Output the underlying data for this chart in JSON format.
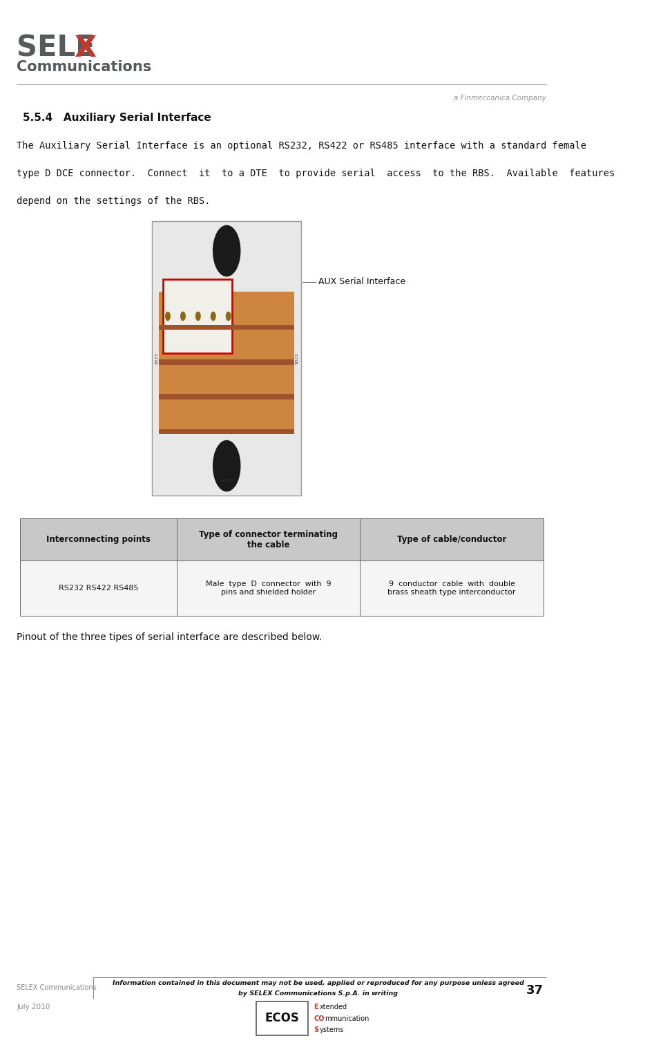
{
  "page_width": 9.6,
  "page_height": 15.25,
  "bg_color": "#ffffff",
  "logo_selex_gray": "SELE",
  "logo_selex_red": "X",
  "logo_comm_text": "Communications",
  "finmeccanica_text": "a Finmeccanica Company",
  "section_title": "5.5.4   Auxiliary Serial Interface",
  "body_text_line1": "The Auxiliary Serial Interface is an optional RS232, RS422 or RS485 interface with a standard female",
  "body_text_line2": "type D DCE connector.  Connect  it  to a DTE  to provide serial  access  to the RBS.  Available  features",
  "body_text_line3": "depend on the settings of the RBS.",
  "image_caption": "AUX Serial Interface",
  "table_headers": [
    "Interconnecting points",
    "Type of connector terminating\nthe cable",
    "Type of cable/conductor"
  ],
  "table_row": [
    "RS232 RS422 RS485",
    "Male  type  D  connector  with  9\npins and shielded holder",
    "9  conductor  cable  with  double\nbrass sheath type interconductor"
  ],
  "pinout_text": "Pinout of the three tipes of serial interface are described below.",
  "footer_left": "SELEX Communications",
  "footer_center_line1": "Information contained in this document may not be used, applied or reproduced for any purpose unless agreed",
  "footer_center_line2": "by SELEX Communications S.p.A. in writing",
  "footer_page": "37",
  "footer_date": "July 2010",
  "gray_color": "#58595b",
  "red_color": "#c0392b",
  "light_gray": "#909090",
  "table_bg_header": "#c8c8c8",
  "table_bg_row": "#f5f5f5",
  "board_color": "#e8e8e8",
  "copper_color": "#cd853f"
}
